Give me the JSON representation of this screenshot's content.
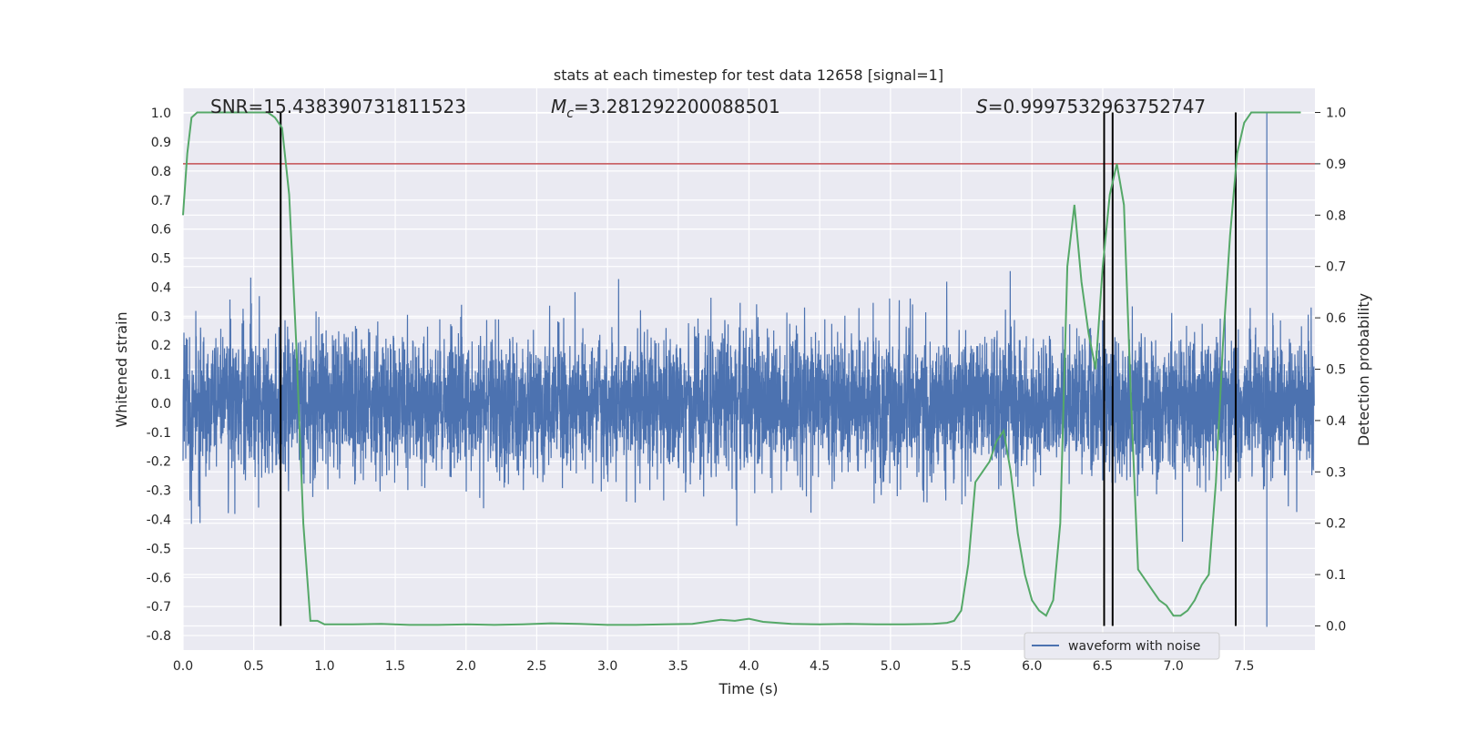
{
  "chart_data": {
    "type": "line",
    "title": "stats at each timestep for test data 12658 [signal=1]",
    "xlabel": "Time (s)",
    "ylabel": "Whitened strain",
    "ylabel_right": "Detection probability",
    "xlim": [
      0.0,
      8.0
    ],
    "ylim": [
      -0.85,
      1.085
    ],
    "ylim_right": [
      -0.047,
      1.047
    ],
    "x_ticks": [
      "0.0",
      "0.5",
      "1.0",
      "1.5",
      "2.0",
      "2.5",
      "3.0",
      "3.5",
      "4.0",
      "4.5",
      "5.0",
      "5.5",
      "6.0",
      "6.5",
      "7.0",
      "7.5"
    ],
    "y_ticks": [
      "-0.8",
      "-0.7",
      "-0.6",
      "-0.5",
      "-0.4",
      "-0.3",
      "-0.2",
      "-0.1",
      "0.0",
      "0.1",
      "0.2",
      "0.3",
      "0.4",
      "0.5",
      "0.6",
      "0.7",
      "0.8",
      "0.9",
      "1.0"
    ],
    "y_ticks_right": [
      "0.0",
      "0.1",
      "0.2",
      "0.3",
      "0.4",
      "0.5",
      "0.6",
      "0.7",
      "0.8",
      "0.9",
      "1.0"
    ],
    "grid": true,
    "legend_position": "lower-right",
    "annotations": {
      "snr": "SNR=15.438390731811523",
      "mc_symbol": "M",
      "mc_subscript": "c",
      "mc_value": "=3.281292200088501",
      "s_symbol": "S",
      "s_value": "=0.9997532963752747"
    },
    "threshold": {
      "y_right": 0.9,
      "color": "#c44e52"
    },
    "event_lines_x": [
      0.69,
      6.51,
      6.57,
      7.44
    ],
    "series": [
      {
        "name": "waveform with noise",
        "axis": "left",
        "color": "#4c72b0",
        "noise_sigma": 0.12,
        "notable_peaks": [
          {
            "x": 7.66,
            "y": 1.0
          },
          {
            "x": 7.66,
            "y": -0.77
          }
        ]
      },
      {
        "axis": "right",
        "color": "#55a868",
        "x": [
          0.0,
          0.03,
          0.06,
          0.1,
          0.15,
          0.2,
          0.3,
          0.4,
          0.5,
          0.6,
          0.65,
          0.7,
          0.75,
          0.8,
          0.85,
          0.9,
          0.95,
          1.0,
          1.2,
          1.4,
          1.6,
          1.8,
          2.0,
          2.2,
          2.4,
          2.6,
          2.8,
          3.0,
          3.2,
          3.4,
          3.6,
          3.7,
          3.8,
          3.9,
          4.0,
          4.1,
          4.3,
          4.5,
          4.7,
          4.9,
          5.1,
          5.3,
          5.4,
          5.45,
          5.5,
          5.55,
          5.6,
          5.65,
          5.7,
          5.75,
          5.8,
          5.85,
          5.9,
          5.95,
          6.0,
          6.05,
          6.1,
          6.15,
          6.2,
          6.25,
          6.3,
          6.35,
          6.4,
          6.45,
          6.5,
          6.55,
          6.6,
          6.65,
          6.7,
          6.75,
          6.8,
          6.85,
          6.9,
          6.95,
          7.0,
          7.05,
          7.1,
          7.15,
          7.2,
          7.25,
          7.3,
          7.35,
          7.4,
          7.45,
          7.5,
          7.55,
          7.6,
          7.7,
          7.8,
          7.9
        ],
        "values": [
          0.8,
          0.92,
          0.99,
          1.0,
          1.0,
          1.0,
          1.0,
          1.0,
          1.0,
          1.0,
          0.99,
          0.97,
          0.84,
          0.55,
          0.2,
          0.01,
          0.01,
          0.003,
          0.003,
          0.004,
          0.002,
          0.002,
          0.003,
          0.002,
          0.003,
          0.005,
          0.004,
          0.002,
          0.002,
          0.003,
          0.004,
          0.008,
          0.012,
          0.01,
          0.014,
          0.008,
          0.004,
          0.003,
          0.004,
          0.003,
          0.003,
          0.004,
          0.006,
          0.01,
          0.03,
          0.12,
          0.28,
          0.3,
          0.32,
          0.36,
          0.38,
          0.3,
          0.18,
          0.1,
          0.05,
          0.03,
          0.02,
          0.05,
          0.2,
          0.7,
          0.82,
          0.67,
          0.57,
          0.5,
          0.7,
          0.84,
          0.9,
          0.82,
          0.44,
          0.11,
          0.09,
          0.07,
          0.05,
          0.04,
          0.02,
          0.02,
          0.03,
          0.05,
          0.08,
          0.1,
          0.28,
          0.55,
          0.76,
          0.92,
          0.98,
          1.0,
          1.0,
          1.0,
          1.0,
          1.0
        ]
      }
    ]
  }
}
